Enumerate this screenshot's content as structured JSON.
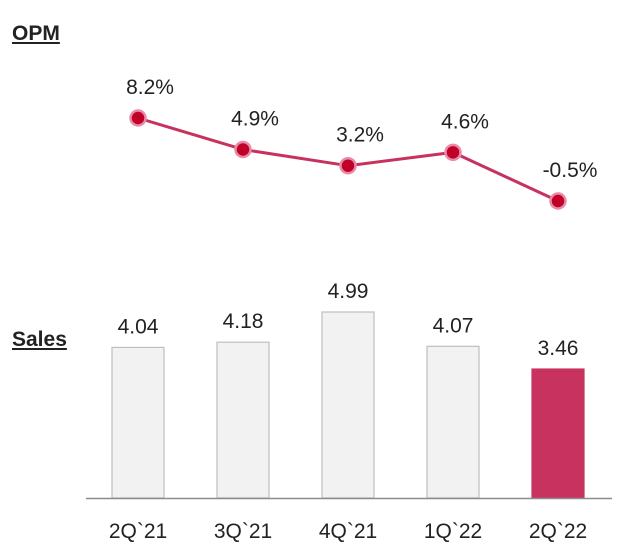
{
  "chart_data": [
    {
      "type": "line",
      "title": "OPM",
      "categories": [
        "2Q`21",
        "3Q`21",
        "4Q`21",
        "1Q`22",
        "2Q`22"
      ],
      "values": [
        8.2,
        4.9,
        3.2,
        4.6,
        -0.5
      ],
      "value_labels": [
        "8.2%",
        "4.9%",
        "3.2%",
        "4.6%",
        "-0.5%"
      ],
      "unit": "%",
      "color": "#c8325f",
      "marker_color": "#c00027"
    },
    {
      "type": "bar",
      "title": "Sales",
      "categories": [
        "2Q`21",
        "3Q`21",
        "4Q`21",
        "1Q`22",
        "2Q`22"
      ],
      "values": [
        4.04,
        4.18,
        4.99,
        4.07,
        3.46
      ],
      "value_labels": [
        "4.04",
        "4.18",
        "4.99",
        "4.07",
        "3.46"
      ],
      "bar_color": "#f2f2f2",
      "bar_border": "#bfbfbf",
      "highlight_index": 4,
      "highlight_color": "#c8325f",
      "ylim": [
        0,
        4.99
      ]
    }
  ]
}
